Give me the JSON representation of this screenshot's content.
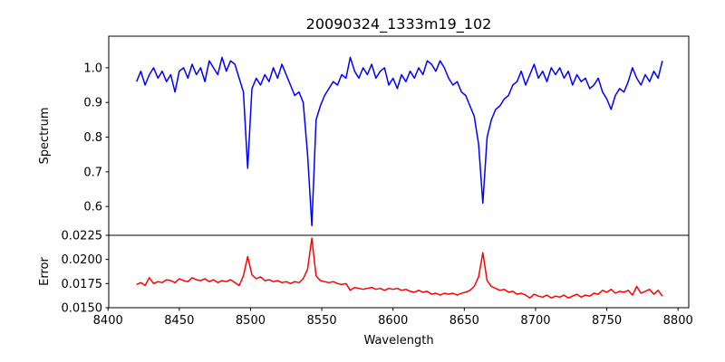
{
  "chart_data": [
    {
      "type": "line",
      "title": "20090324_1333m19_102",
      "xlabel": "",
      "ylabel": "Spectrum",
      "xlim": [
        8400.5,
        8807.5
      ],
      "ylim": [
        0.517,
        1.091
      ],
      "yticks": [
        "0.6",
        "0.7",
        "0.8",
        "0.9",
        "1.0"
      ],
      "x_start": 8420,
      "x_step": 3,
      "color": "#0000ff",
      "values": [
        0.96,
        0.99,
        0.95,
        0.98,
        1.0,
        0.97,
        0.99,
        0.96,
        0.98,
        0.93,
        0.99,
        1.0,
        0.97,
        1.01,
        0.98,
        1.0,
        0.96,
        1.02,
        1.0,
        0.98,
        1.03,
        0.99,
        1.02,
        1.01,
        0.97,
        0.93,
        0.71,
        0.94,
        0.97,
        0.95,
        0.98,
        0.96,
        1.0,
        0.97,
        1.01,
        0.98,
        0.95,
        0.92,
        0.93,
        0.9,
        0.75,
        0.545,
        0.85,
        0.89,
        0.92,
        0.94,
        0.96,
        0.95,
        0.98,
        0.97,
        1.03,
        0.99,
        0.97,
        1.0,
        0.98,
        1.01,
        0.97,
        0.99,
        1.0,
        0.95,
        0.97,
        0.94,
        0.98,
        0.96,
        0.99,
        0.97,
        1.0,
        0.98,
        1.02,
        1.01,
        0.99,
        1.02,
        1.0,
        0.97,
        0.95,
        0.96,
        0.93,
        0.92,
        0.89,
        0.86,
        0.78,
        0.61,
        0.8,
        0.85,
        0.88,
        0.89,
        0.91,
        0.92,
        0.95,
        0.96,
        0.99,
        0.95,
        0.98,
        1.01,
        0.97,
        0.99,
        0.96,
        1.0,
        0.98,
        1.0,
        0.97,
        0.99,
        0.95,
        0.98,
        0.96,
        0.97,
        0.94,
        0.95,
        0.97,
        0.93,
        0.91,
        0.88,
        0.92,
        0.94,
        0.93,
        0.96,
        1.0,
        0.97,
        0.95,
        0.98,
        0.96,
        0.99,
        0.97,
        1.02
      ]
    },
    {
      "type": "line",
      "title": "",
      "xlabel": "Wavelength",
      "ylabel": "Error",
      "xlim": [
        8400.5,
        8807.5
      ],
      "ylim": [
        0.015,
        0.0225
      ],
      "xticks": [
        "8400",
        "8450",
        "8500",
        "8550",
        "8600",
        "8650",
        "8700",
        "8750",
        "8800"
      ],
      "yticks": [
        "0.0150",
        "0.0175",
        "0.0200",
        "0.0225"
      ],
      "x_start": 8420,
      "x_step": 3,
      "color": "#ff0000",
      "values": [
        0.0174,
        0.0176,
        0.0173,
        0.0181,
        0.0175,
        0.0177,
        0.0176,
        0.0179,
        0.0178,
        0.0176,
        0.018,
        0.0178,
        0.0177,
        0.0181,
        0.0179,
        0.0178,
        0.018,
        0.0177,
        0.0179,
        0.0176,
        0.0178,
        0.0177,
        0.0179,
        0.0176,
        0.0173,
        0.0183,
        0.0203,
        0.0184,
        0.018,
        0.0182,
        0.0178,
        0.0179,
        0.0177,
        0.0178,
        0.0176,
        0.0177,
        0.0175,
        0.0177,
        0.0176,
        0.018,
        0.019,
        0.0222,
        0.0183,
        0.0178,
        0.0177,
        0.0176,
        0.0177,
        0.0175,
        0.0174,
        0.0175,
        0.0168,
        0.0171,
        0.017,
        0.0169,
        0.017,
        0.0171,
        0.0169,
        0.017,
        0.0168,
        0.017,
        0.0169,
        0.017,
        0.0168,
        0.0169,
        0.0167,
        0.0166,
        0.0168,
        0.0166,
        0.0167,
        0.0164,
        0.0165,
        0.0163,
        0.0165,
        0.0164,
        0.0165,
        0.0163,
        0.0165,
        0.0166,
        0.0168,
        0.0172,
        0.0182,
        0.0207,
        0.0178,
        0.0172,
        0.017,
        0.0168,
        0.0169,
        0.0166,
        0.0167,
        0.0164,
        0.0165,
        0.0163,
        0.016,
        0.0164,
        0.0162,
        0.0161,
        0.0163,
        0.016,
        0.0162,
        0.0161,
        0.0163,
        0.016,
        0.0162,
        0.0164,
        0.0161,
        0.0163,
        0.0162,
        0.0165,
        0.0164,
        0.0168,
        0.0166,
        0.0169,
        0.0165,
        0.0167,
        0.0166,
        0.0168,
        0.0163,
        0.0172,
        0.0165,
        0.0167,
        0.0169,
        0.0164,
        0.0168,
        0.0162
      ]
    }
  ]
}
